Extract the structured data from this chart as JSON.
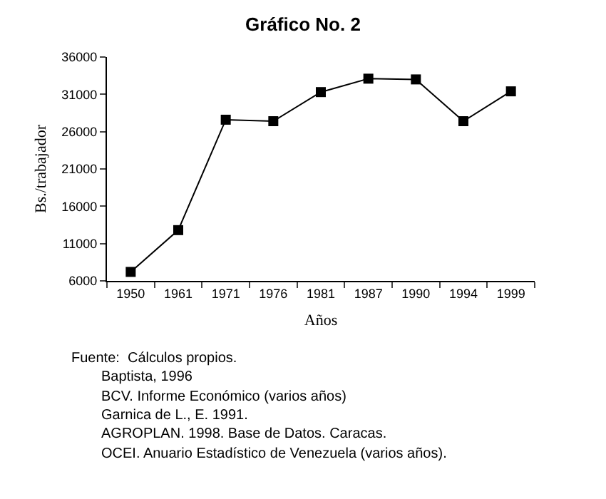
{
  "chart_data": {
    "type": "line",
    "title": "Gráfico No. 2",
    "xlabel": "Años",
    "ylabel": "Bs./trabajador",
    "categories": [
      "1950",
      "1961",
      "1971",
      "1976",
      "1981",
      "1987",
      "1990",
      "1994",
      "1999"
    ],
    "series": [
      {
        "color": "#000000",
        "values": [
          7200,
          12800,
          27600,
          27400,
          31300,
          33100,
          33000,
          27400,
          31400
        ]
      }
    ],
    "ylim": [
      6000,
      36000
    ],
    "yticks": [
      6000,
      11000,
      16000,
      21000,
      26000,
      31000,
      36000
    ],
    "grid": false,
    "marker": "square",
    "line_style": "solid",
    "annotations": [
      "Fuente:  Cálculos propios.",
      "Baptista, 1996",
      "BCV. Informe Económico (varios años)",
      "Garnica de L., E. 1991.",
      "AGROPLAN. 1998. Base de Datos. Caracas.",
      "OCEI. Anuario Estadístico de Venezuela (varios años)."
    ]
  }
}
